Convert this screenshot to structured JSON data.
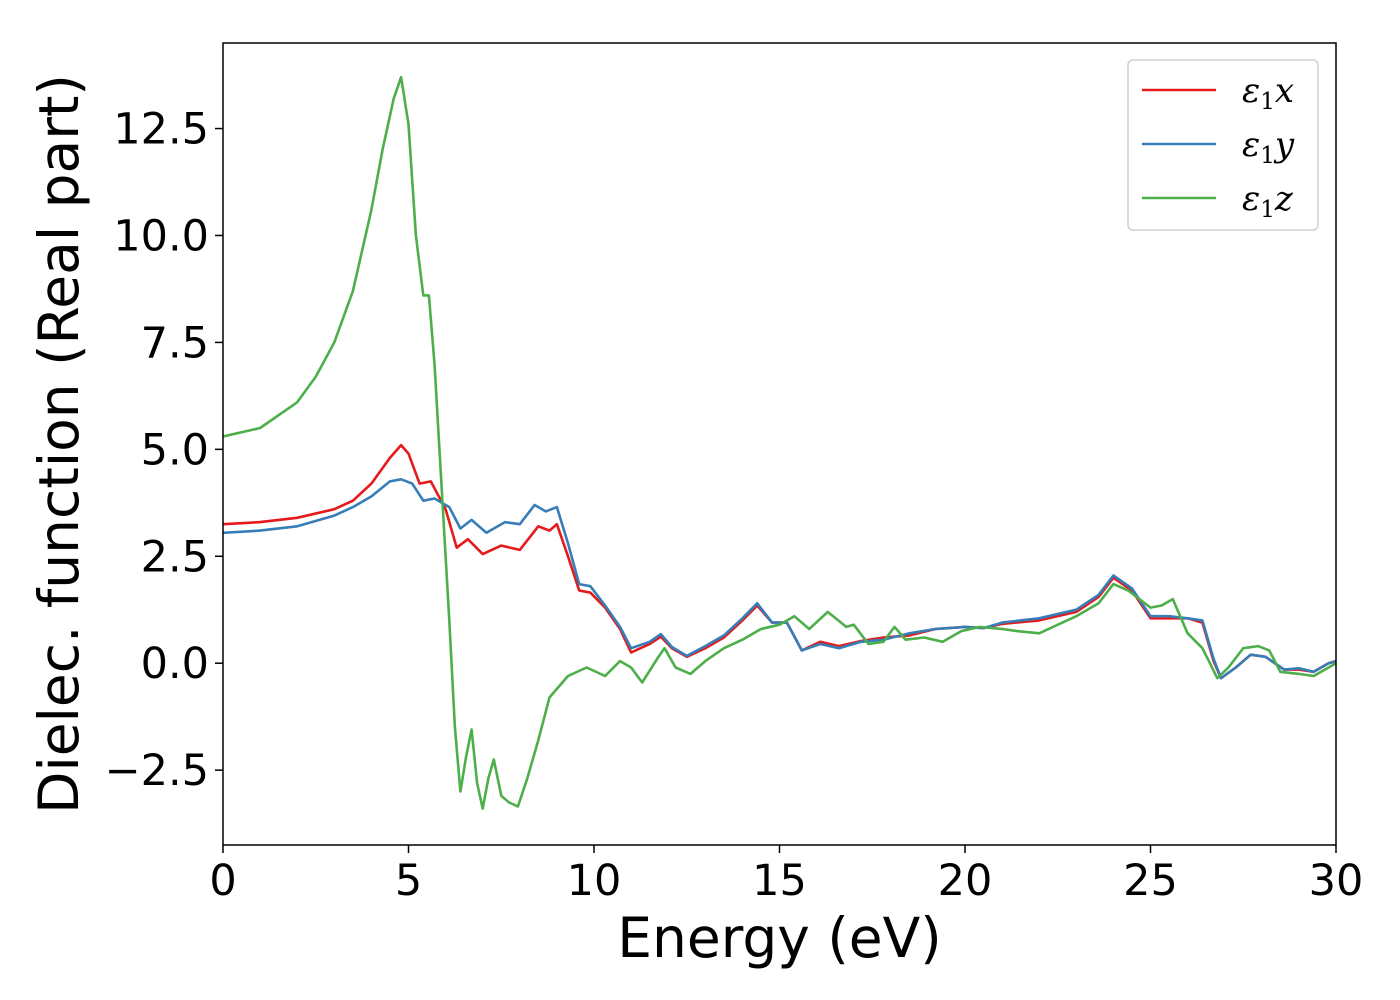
{
  "chart_data": {
    "type": "line",
    "xlabel": "Energy (eV)",
    "ylabel": "Dielec. function (Real part)",
    "xlim": [
      0,
      30
    ],
    "ylim": [
      -4.25,
      14.5
    ],
    "x_ticks": [
      0,
      5,
      10,
      15,
      20,
      25,
      30
    ],
    "x_tick_labels": [
      "0",
      "5",
      "10",
      "15",
      "20",
      "25",
      "30"
    ],
    "y_ticks": [
      -2.5,
      0,
      2.5,
      5,
      7.5,
      10,
      12.5
    ],
    "y_tick_labels": [
      "−2.5",
      "0.0",
      "2.5",
      "5.0",
      "7.5",
      "10.0",
      "12.5"
    ],
    "grid": false,
    "legend_position": "top-right",
    "series": [
      {
        "name": "ε₁x",
        "legend_symbol": "ε",
        "legend_sub": "1",
        "legend_suffix": "x",
        "color": "#e41a1c",
        "points": [
          [
            0,
            3.25
          ],
          [
            1,
            3.3
          ],
          [
            2,
            3.4
          ],
          [
            3,
            3.6
          ],
          [
            3.5,
            3.8
          ],
          [
            4,
            4.2
          ],
          [
            4.5,
            4.8
          ],
          [
            4.8,
            5.1
          ],
          [
            5.0,
            4.9
          ],
          [
            5.3,
            4.2
          ],
          [
            5.6,
            4.25
          ],
          [
            6.0,
            3.6
          ],
          [
            6.3,
            2.7
          ],
          [
            6.6,
            2.9
          ],
          [
            7.0,
            2.55
          ],
          [
            7.5,
            2.75
          ],
          [
            8.0,
            2.65
          ],
          [
            8.5,
            3.2
          ],
          [
            8.8,
            3.1
          ],
          [
            9.0,
            3.25
          ],
          [
            9.3,
            2.5
          ],
          [
            9.6,
            1.7
          ],
          [
            9.9,
            1.65
          ],
          [
            10.3,
            1.3
          ],
          [
            10.7,
            0.8
          ],
          [
            11.0,
            0.25
          ],
          [
            11.5,
            0.45
          ],
          [
            11.8,
            0.62
          ],
          [
            12.1,
            0.35
          ],
          [
            12.5,
            0.15
          ],
          [
            13.0,
            0.35
          ],
          [
            13.5,
            0.6
          ],
          [
            14.0,
            1.0
          ],
          [
            14.4,
            1.35
          ],
          [
            14.8,
            0.95
          ],
          [
            15.2,
            0.95
          ],
          [
            15.6,
            0.3
          ],
          [
            16.1,
            0.5
          ],
          [
            16.6,
            0.4
          ],
          [
            17.2,
            0.52
          ],
          [
            17.8,
            0.6
          ],
          [
            18.5,
            0.65
          ],
          [
            19.2,
            0.8
          ],
          [
            20.0,
            0.85
          ],
          [
            20.5,
            0.82
          ],
          [
            21.0,
            0.92
          ],
          [
            22.0,
            1.0
          ],
          [
            23.0,
            1.2
          ],
          [
            23.6,
            1.55
          ],
          [
            24.0,
            2.0
          ],
          [
            24.5,
            1.7
          ],
          [
            25.0,
            1.05
          ],
          [
            25.5,
            1.05
          ],
          [
            26.0,
            1.05
          ],
          [
            26.4,
            0.95
          ],
          [
            26.7,
            0.05
          ],
          [
            26.9,
            -0.35
          ],
          [
            27.3,
            -0.1
          ],
          [
            27.7,
            0.2
          ],
          [
            28.1,
            0.15
          ],
          [
            28.6,
            -0.15
          ],
          [
            29.0,
            -0.15
          ],
          [
            29.4,
            -0.2
          ],
          [
            29.8,
            0.0
          ],
          [
            30.0,
            0.05
          ]
        ]
      },
      {
        "name": "ε₁y",
        "legend_symbol": "ε",
        "legend_sub": "1",
        "legend_suffix": "y",
        "color": "#377eb8",
        "points": [
          [
            0,
            3.05
          ],
          [
            1,
            3.1
          ],
          [
            2,
            3.2
          ],
          [
            3,
            3.45
          ],
          [
            3.5,
            3.65
          ],
          [
            4,
            3.9
          ],
          [
            4.5,
            4.25
          ],
          [
            4.8,
            4.3
          ],
          [
            5.1,
            4.2
          ],
          [
            5.4,
            3.8
          ],
          [
            5.7,
            3.85
          ],
          [
            6.1,
            3.65
          ],
          [
            6.4,
            3.15
          ],
          [
            6.7,
            3.35
          ],
          [
            7.1,
            3.05
          ],
          [
            7.6,
            3.3
          ],
          [
            8.0,
            3.25
          ],
          [
            8.4,
            3.7
          ],
          [
            8.7,
            3.55
          ],
          [
            9.0,
            3.65
          ],
          [
            9.3,
            2.8
          ],
          [
            9.6,
            1.85
          ],
          [
            9.9,
            1.8
          ],
          [
            10.3,
            1.35
          ],
          [
            10.7,
            0.85
          ],
          [
            11.0,
            0.35
          ],
          [
            11.5,
            0.5
          ],
          [
            11.8,
            0.68
          ],
          [
            12.1,
            0.38
          ],
          [
            12.5,
            0.17
          ],
          [
            13.0,
            0.4
          ],
          [
            13.5,
            0.65
          ],
          [
            14.0,
            1.05
          ],
          [
            14.4,
            1.4
          ],
          [
            14.8,
            0.95
          ],
          [
            15.2,
            0.95
          ],
          [
            15.6,
            0.3
          ],
          [
            16.1,
            0.45
          ],
          [
            16.6,
            0.35
          ],
          [
            17.2,
            0.5
          ],
          [
            17.8,
            0.55
          ],
          [
            18.5,
            0.7
          ],
          [
            19.2,
            0.8
          ],
          [
            20.0,
            0.85
          ],
          [
            20.5,
            0.82
          ],
          [
            21.0,
            0.95
          ],
          [
            22.0,
            1.05
          ],
          [
            23.0,
            1.25
          ],
          [
            23.6,
            1.6
          ],
          [
            24.0,
            2.05
          ],
          [
            24.5,
            1.75
          ],
          [
            25.0,
            1.1
          ],
          [
            25.5,
            1.1
          ],
          [
            26.0,
            1.05
          ],
          [
            26.4,
            1.0
          ],
          [
            26.7,
            0.1
          ],
          [
            26.9,
            -0.35
          ],
          [
            27.3,
            -0.1
          ],
          [
            27.7,
            0.2
          ],
          [
            28.1,
            0.15
          ],
          [
            28.6,
            -0.15
          ],
          [
            29.0,
            -0.12
          ],
          [
            29.4,
            -0.2
          ],
          [
            29.8,
            0.0
          ],
          [
            30.0,
            0.05
          ]
        ]
      },
      {
        "name": "ε₁z",
        "legend_symbol": "ε",
        "legend_sub": "1",
        "legend_suffix": "z",
        "color": "#4daf4a",
        "points": [
          [
            0,
            5.3
          ],
          [
            1,
            5.5
          ],
          [
            2,
            6.1
          ],
          [
            2.5,
            6.7
          ],
          [
            3,
            7.5
          ],
          [
            3.5,
            8.7
          ],
          [
            4,
            10.6
          ],
          [
            4.3,
            12.0
          ],
          [
            4.6,
            13.2
          ],
          [
            4.8,
            13.7
          ],
          [
            5.0,
            12.6
          ],
          [
            5.2,
            10.0
          ],
          [
            5.4,
            8.6
          ],
          [
            5.55,
            8.6
          ],
          [
            5.7,
            7.0
          ],
          [
            5.9,
            4.0
          ],
          [
            6.1,
            1.0
          ],
          [
            6.25,
            -1.5
          ],
          [
            6.4,
            -3.0
          ],
          [
            6.55,
            -2.2
          ],
          [
            6.7,
            -1.55
          ],
          [
            6.85,
            -2.8
          ],
          [
            7.0,
            -3.4
          ],
          [
            7.15,
            -2.7
          ],
          [
            7.3,
            -2.25
          ],
          [
            7.5,
            -3.1
          ],
          [
            7.7,
            -3.25
          ],
          [
            7.95,
            -3.35
          ],
          [
            8.2,
            -2.7
          ],
          [
            8.5,
            -1.8
          ],
          [
            8.8,
            -0.8
          ],
          [
            9.3,
            -0.3
          ],
          [
            9.8,
            -0.1
          ],
          [
            10.3,
            -0.3
          ],
          [
            10.7,
            0.05
          ],
          [
            11.0,
            -0.1
          ],
          [
            11.3,
            -0.45
          ],
          [
            11.7,
            0.1
          ],
          [
            11.9,
            0.35
          ],
          [
            12.2,
            -0.1
          ],
          [
            12.6,
            -0.25
          ],
          [
            13.0,
            0.05
          ],
          [
            13.5,
            0.35
          ],
          [
            14.0,
            0.55
          ],
          [
            14.5,
            0.8
          ],
          [
            15.0,
            0.9
          ],
          [
            15.4,
            1.1
          ],
          [
            15.8,
            0.8
          ],
          [
            16.3,
            1.2
          ],
          [
            16.8,
            0.85
          ],
          [
            17.0,
            0.9
          ],
          [
            17.4,
            0.45
          ],
          [
            17.8,
            0.5
          ],
          [
            18.1,
            0.85
          ],
          [
            18.4,
            0.55
          ],
          [
            18.9,
            0.6
          ],
          [
            19.4,
            0.5
          ],
          [
            19.9,
            0.75
          ],
          [
            20.4,
            0.85
          ],
          [
            21.0,
            0.8
          ],
          [
            21.4,
            0.75
          ],
          [
            22.0,
            0.7
          ],
          [
            22.5,
            0.9
          ],
          [
            23.0,
            1.1
          ],
          [
            23.6,
            1.4
          ],
          [
            24.0,
            1.85
          ],
          [
            24.4,
            1.7
          ],
          [
            25.0,
            1.3
          ],
          [
            25.3,
            1.35
          ],
          [
            25.6,
            1.5
          ],
          [
            26.0,
            0.7
          ],
          [
            26.4,
            0.35
          ],
          [
            26.6,
            0.0
          ],
          [
            26.8,
            -0.35
          ],
          [
            27.1,
            -0.1
          ],
          [
            27.5,
            0.35
          ],
          [
            27.9,
            0.4
          ],
          [
            28.2,
            0.3
          ],
          [
            28.5,
            -0.2
          ],
          [
            29.0,
            -0.25
          ],
          [
            29.4,
            -0.3
          ],
          [
            29.8,
            -0.1
          ],
          [
            30.0,
            0.0
          ]
        ]
      }
    ]
  }
}
